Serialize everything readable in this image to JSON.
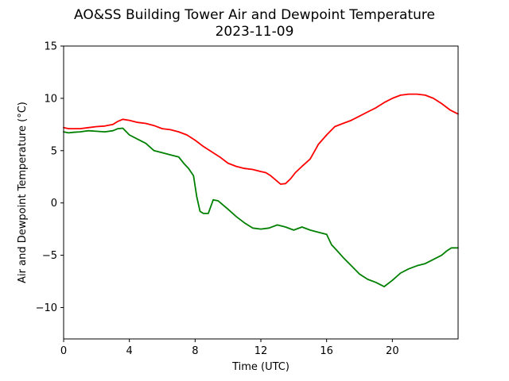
{
  "chart_data": {
    "type": "line",
    "title": "AO&SS Building Tower Air and Dewpoint Temperature",
    "subtitle": "2023-11-09",
    "xlabel": "Time (UTC)",
    "ylabel": "Air and Dewpoint Temperature (°C)",
    "xlim": [
      0,
      24
    ],
    "ylim": [
      -13,
      15
    ],
    "xticks": [
      0,
      4,
      8,
      12,
      16,
      20
    ],
    "yticks": [
      -10,
      -5,
      0,
      5,
      10,
      15
    ],
    "grid": false,
    "series": [
      {
        "color": "#ff0000",
        "x": [
          0,
          0.3,
          0.6,
          1,
          1.5,
          2,
          2.5,
          3,
          3.3,
          3.6,
          4,
          4.5,
          5,
          5.5,
          6,
          6.5,
          7,
          7.5,
          8,
          8.5,
          9,
          9.5,
          10,
          10.5,
          11,
          11.5,
          12,
          12.3,
          12.6,
          12.9,
          13.2,
          13.5,
          13.8,
          14.1,
          14.5,
          15,
          15.5,
          16,
          16.5,
          17,
          17.5,
          18,
          18.5,
          19,
          19.5,
          20,
          20.5,
          21,
          21.5,
          22,
          22.5,
          23,
          23.5,
          24
        ],
        "y": [
          7.2,
          7.1,
          7.1,
          7.1,
          7.2,
          7.3,
          7.35,
          7.5,
          7.8,
          8.0,
          7.9,
          7.7,
          7.6,
          7.4,
          7.1,
          7.0,
          6.8,
          6.5,
          6.0,
          5.4,
          4.9,
          4.4,
          3.8,
          3.5,
          3.3,
          3.2,
          3.0,
          2.9,
          2.6,
          2.2,
          1.8,
          1.85,
          2.3,
          2.9,
          3.5,
          4.2,
          5.6,
          6.5,
          7.3,
          7.6,
          7.9,
          8.3,
          8.7,
          9.1,
          9.6,
          10.0,
          10.3,
          10.4,
          10.4,
          10.3,
          10.0,
          9.5,
          8.9,
          8.5
        ]
      },
      {
        "color": "#008000",
        "x": [
          0,
          0.3,
          0.6,
          1,
          1.5,
          2,
          2.5,
          3,
          3.3,
          3.6,
          4,
          4.5,
          5,
          5.5,
          6,
          6.5,
          7,
          7.3,
          7.6,
          7.9,
          8.1,
          8.3,
          8.5,
          8.8,
          9.1,
          9.4,
          9.7,
          10,
          10.5,
          11,
          11.5,
          12,
          12.5,
          13,
          13.5,
          14,
          14.5,
          15,
          15.5,
          16,
          16.3,
          16.6,
          17,
          17.5,
          18,
          18.5,
          19,
          19.5,
          20,
          20.5,
          21,
          21.5,
          22,
          22.5,
          23,
          23.3,
          23.6,
          24
        ],
        "y": [
          6.8,
          6.7,
          6.75,
          6.8,
          6.9,
          6.85,
          6.8,
          6.9,
          7.1,
          7.15,
          6.5,
          6.1,
          5.7,
          5.0,
          4.8,
          4.6,
          4.4,
          3.8,
          3.3,
          2.6,
          0.6,
          -0.8,
          -1.0,
          -1.0,
          0.3,
          0.2,
          -0.2,
          -0.6,
          -1.3,
          -1.9,
          -2.4,
          -2.5,
          -2.4,
          -2.1,
          -2.3,
          -2.6,
          -2.3,
          -2.6,
          -2.8,
          -3.0,
          -4.0,
          -4.5,
          -5.2,
          -6.0,
          -6.8,
          -7.3,
          -7.6,
          -8.0,
          -7.4,
          -6.7,
          -6.3,
          -6.0,
          -5.8,
          -5.4,
          -5.0,
          -4.6,
          -4.3,
          -4.3
        ]
      }
    ]
  }
}
